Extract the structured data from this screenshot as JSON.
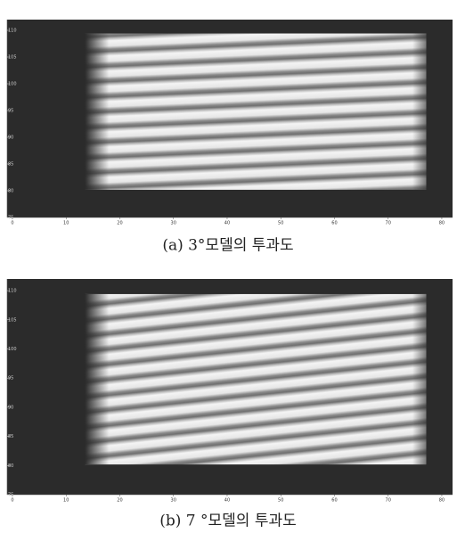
{
  "chart_data": [
    {
      "type": "image",
      "caption": "(a) 3°모델의 투과도",
      "xlim": [
        0,
        82
      ],
      "ylim": [
        75,
        112
      ],
      "xticks": [
        0,
        10,
        20,
        30,
        40,
        50,
        60,
        70,
        80
      ],
      "yticks": [
        75,
        80,
        85,
        90,
        95,
        100,
        105,
        110
      ]
    },
    {
      "type": "image",
      "caption": "(b) 7 °모델의 투과도",
      "xlim": [
        0,
        82
      ],
      "ylim": [
        75,
        112
      ],
      "xticks": [
        0,
        10,
        20,
        30,
        40,
        50,
        60,
        70,
        80
      ],
      "yticks": [
        75,
        80,
        85,
        90,
        95,
        100,
        105,
        110
      ]
    }
  ]
}
